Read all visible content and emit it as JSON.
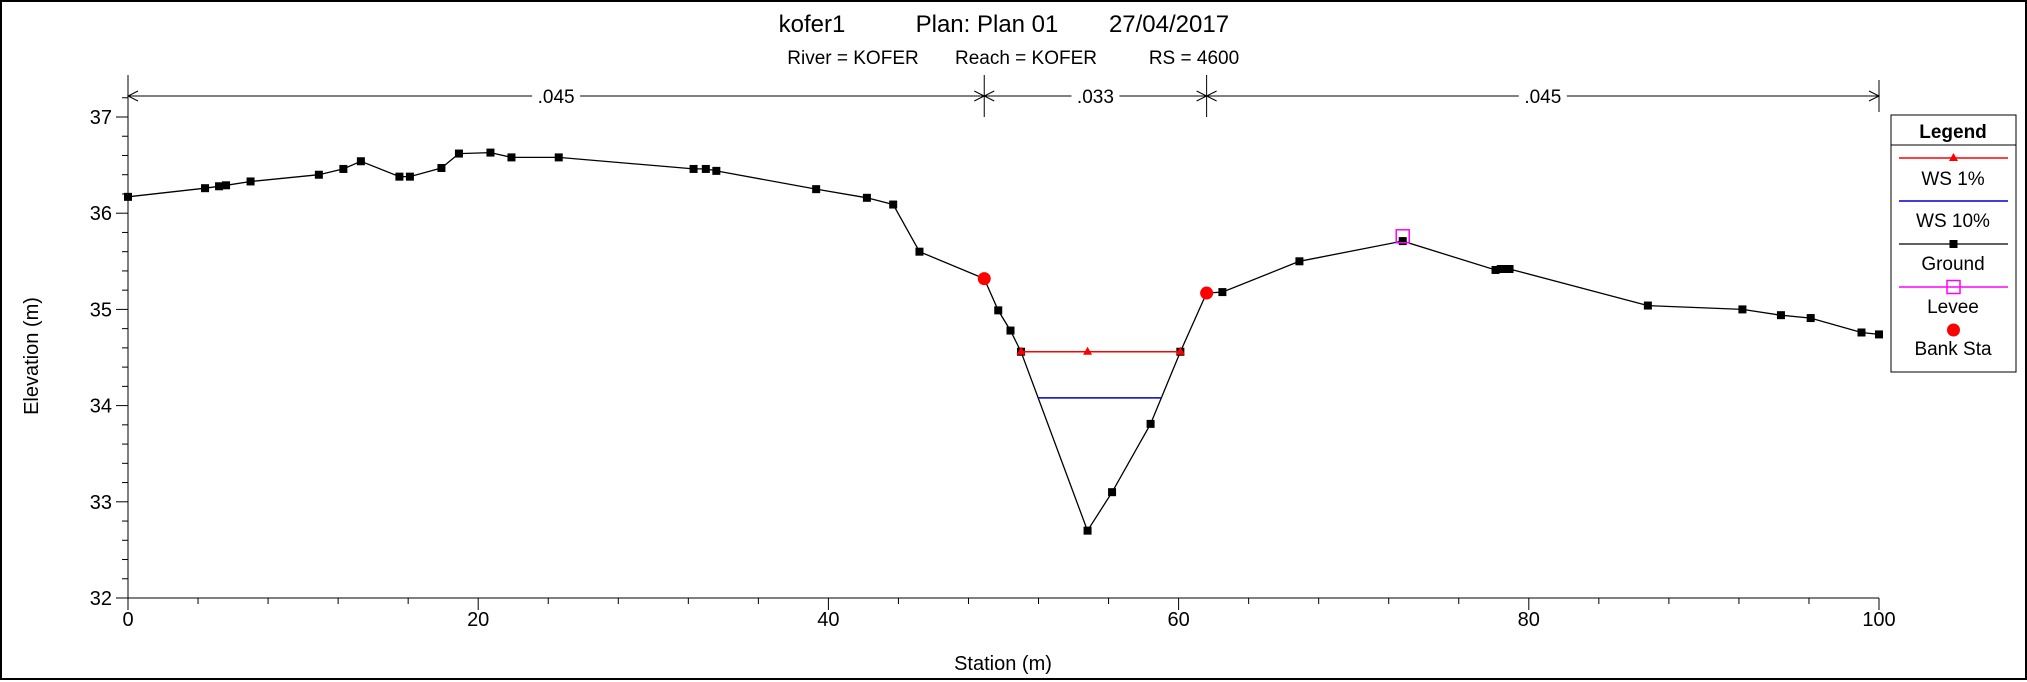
{
  "chart_data": {
    "type": "line",
    "title": "kofer1",
    "title_plan": "Plan: Plan 01",
    "title_date": "27/04/2017",
    "subtitle_river": "River = KOFER",
    "subtitle_reach": "Reach = KOFER",
    "subtitle_rs": "RS = 4600",
    "xlabel": "Station (m)",
    "ylabel": "Elevation (m)",
    "xlim": [
      0,
      100
    ],
    "ylim": [
      32,
      37.4
    ],
    "x_ticks": [
      "0",
      "20",
      "40",
      "60",
      "80",
      "100"
    ],
    "y_ticks": [
      "32",
      "33",
      "34",
      "35",
      "36",
      "37"
    ],
    "x_tick_values": [
      0,
      20,
      40,
      60,
      80,
      100
    ],
    "y_tick_values": [
      32,
      33,
      34,
      35,
      36,
      37
    ],
    "manning": [
      {
        "label": ".045",
        "from": 0,
        "to": 48.9
      },
      {
        "label": ".033",
        "from": 48.9,
        "to": 61.6
      },
      {
        "label": ".045",
        "from": 61.6,
        "to": 100
      }
    ],
    "legend_title": "Legend",
    "legend": [
      "WS 1%",
      "WS 10%",
      "Ground",
      "Levee",
      "Bank Sta"
    ],
    "colors": {
      "ws1": "#ff0000",
      "ws10": "#0000cc",
      "ground": "#000000",
      "levee": "#ff00ff",
      "bank": "#ff0000"
    },
    "series": [
      {
        "name": "Ground",
        "x": [
          0,
          4.4,
          5.2,
          5.6,
          7.0,
          10.9,
          12.3,
          13.3,
          15.5,
          16.1,
          17.9,
          18.9,
          20.7,
          21.9,
          24.6,
          32.3,
          33.0,
          33.6,
          39.3,
          42.2,
          43.7,
          45.2,
          48.9,
          49.7,
          50.4,
          51.0,
          54.8,
          56.2,
          58.4,
          60.1,
          61.6,
          62.5,
          66.9,
          72.8,
          78.1,
          78.4,
          78.6,
          78.9,
          86.8,
          92.2,
          94.4,
          96.1,
          99.0,
          100
        ],
        "y": [
          36.17,
          36.26,
          36.28,
          36.29,
          36.33,
          36.4,
          36.46,
          36.54,
          36.38,
          36.38,
          36.47,
          36.62,
          36.63,
          36.58,
          36.58,
          36.46,
          36.46,
          36.44,
          36.25,
          36.16,
          36.09,
          35.6,
          35.32,
          34.99,
          34.78,
          34.56,
          32.7,
          33.1,
          33.81,
          34.56,
          35.17,
          35.18,
          35.5,
          35.71,
          35.41,
          35.42,
          35.42,
          35.42,
          35.04,
          35.0,
          34.94,
          34.91,
          34.76,
          34.74
        ]
      },
      {
        "name": "WS 1%",
        "x": [
          51.0,
          54.8,
          60.1
        ],
        "y": [
          34.56,
          34.56,
          34.56
        ]
      },
      {
        "name": "WS 10%",
        "x": [
          52.0,
          59.0
        ],
        "y": [
          34.08,
          34.08
        ]
      },
      {
        "name": "Levee",
        "x": [
          72.8
        ],
        "y": [
          35.76
        ]
      },
      {
        "name": "Bank Sta",
        "x": [
          48.9,
          61.6
        ],
        "y": [
          35.32,
          35.17
        ]
      }
    ]
  }
}
